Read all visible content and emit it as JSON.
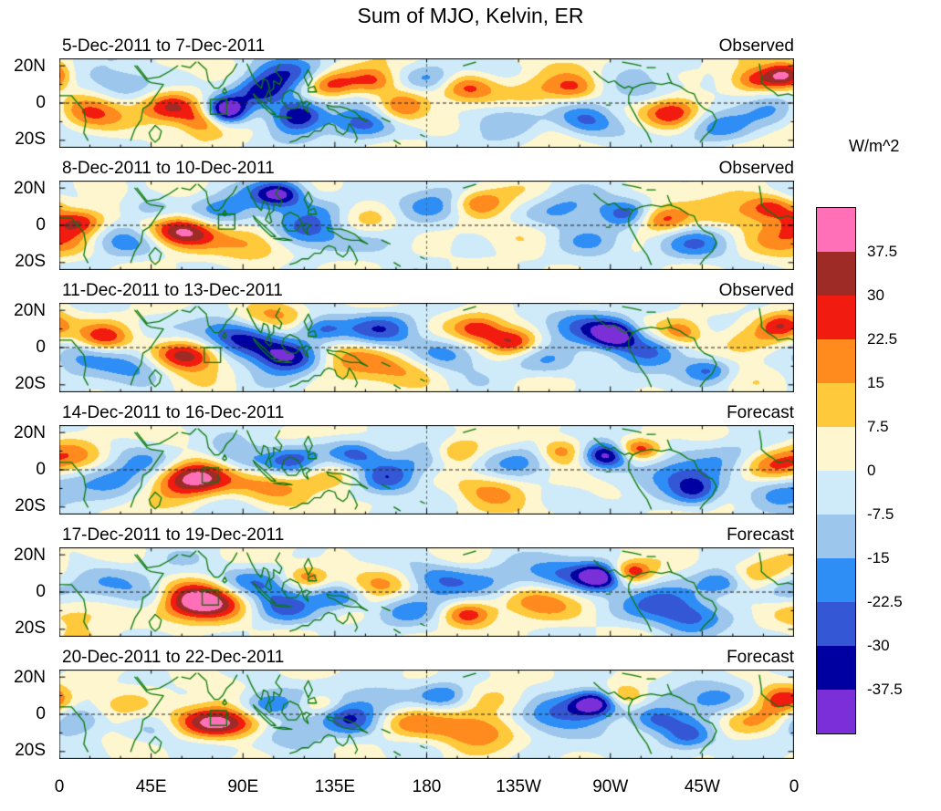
{
  "title": "Sum of MJO, Kelvin, ER",
  "y_axis": {
    "labels": [
      "20N",
      "0",
      "20S"
    ]
  },
  "x_axis": {
    "labels": [
      "0",
      "45E",
      "90E",
      "135E",
      "180",
      "135W",
      "90W",
      "45W",
      "0"
    ]
  },
  "colorbar": {
    "unit_label": "W/m^2",
    "tick_labels": [
      "37.5",
      "30",
      "22.5",
      "15",
      "7.5",
      "0",
      "-7.5",
      "-15",
      "-22.5",
      "-30",
      "-37.5"
    ],
    "colors_top_to_bottom": [
      "#FF70B8",
      "#9E2B25",
      "#F21B0F",
      "#FF8A1E",
      "#FFC93C",
      "#FEF6CE",
      "#CFEAF8",
      "#9CC6EC",
      "#2F8EF5",
      "#3457D5",
      "#0000A0",
      "#7B2FD9"
    ],
    "coastline_color": "#0B7A0B"
  },
  "chart_data": {
    "type": "heatmap",
    "title": "Sum of MJO, Kelvin, ER",
    "unit": "W/m^2",
    "lon_range": [
      0,
      360
    ],
    "lat_range": [
      -24,
      24
    ],
    "lat_ticks": [
      20,
      0,
      -20
    ],
    "lon_tick_step_deg": 45,
    "contour_levels": [
      -37.5,
      -30,
      -22.5,
      -15,
      -7.5,
      0,
      7.5,
      15,
      22.5,
      30,
      37.5
    ],
    "panels": [
      {
        "date_range": "5-Dec-2011 to 7-Dec-2011",
        "status": "Observed",
        "box_lon_lat": [
          74,
          82,
          -6,
          2
        ],
        "features": [
          {
            "lon": 15,
            "lat": -6,
            "amp": 24
          },
          {
            "lon": 32,
            "lat": 9,
            "amp": -16
          },
          {
            "lon": 55,
            "lat": -2,
            "amp": 32,
            "slon": 11,
            "slat": 6
          },
          {
            "lon": 70,
            "lat": -10,
            "amp": 20,
            "slon": 8,
            "slat": 5
          },
          {
            "lon": 82,
            "lat": -4,
            "amp": -46,
            "slon": 7,
            "slat": 5
          },
          {
            "lon": 100,
            "lat": 6,
            "amp": -34,
            "slon": 10,
            "slat": 6
          },
          {
            "lon": 117,
            "lat": -6,
            "amp": -40,
            "slon": 9,
            "slat": 6
          },
          {
            "lon": 112,
            "lat": 16,
            "amp": -20
          },
          {
            "lon": 133,
            "lat": 10,
            "amp": 26,
            "slon": 9,
            "slat": 5
          },
          {
            "lon": 148,
            "lat": -12,
            "amp": -28,
            "slon": 11,
            "slat": 6
          },
          {
            "lon": 154,
            "lat": 12,
            "amp": 22,
            "slon": 8,
            "slat": 5
          },
          {
            "lon": 168,
            "lat": -2,
            "amp": 24,
            "slon": 9,
            "slat": 6
          },
          {
            "lon": 182,
            "lat": 13,
            "amp": -18,
            "slon": 9,
            "slat": 5
          },
          {
            "lon": 200,
            "lat": 8,
            "amp": 22,
            "slon": 10,
            "slat": 5
          },
          {
            "lon": 218,
            "lat": -8,
            "amp": -14
          },
          {
            "lon": 238,
            "lat": 6,
            "amp": 16
          },
          {
            "lon": 258,
            "lat": -10,
            "amp": -24,
            "slon": 10,
            "slat": 6
          },
          {
            "lon": 253,
            "lat": 8,
            "amp": 18,
            "slon": 8,
            "slat": 5
          },
          {
            "lon": 286,
            "lat": 5,
            "amp": -16
          },
          {
            "lon": 300,
            "lat": -5,
            "amp": 32,
            "slon": 10,
            "slat": 6
          },
          {
            "lon": 322,
            "lat": -13,
            "amp": -18
          },
          {
            "lon": 341,
            "lat": 12,
            "amp": 24,
            "slon": 9,
            "slat": 5
          },
          {
            "lon": 356,
            "lat": 15,
            "amp": 30,
            "slon": 7,
            "slat": 5
          },
          {
            "lon": 352,
            "lat": -6,
            "amp": -14
          }
        ]
      },
      {
        "date_range": "8-Dec-2011 to 10-Dec-2011",
        "status": "Observed",
        "box_lon_lat": [
          78,
          86,
          -2,
          6
        ],
        "features": [
          {
            "lon": 10,
            "lat": 2,
            "amp": 30,
            "slon": 9,
            "slat": 5
          },
          {
            "lon": 28,
            "lat": -8,
            "amp": -16
          },
          {
            "lon": 45,
            "lat": 9,
            "amp": -18,
            "slon": 9,
            "slat": 5
          },
          {
            "lon": 60,
            "lat": -3,
            "amp": 44,
            "slon": 12,
            "slat": 6
          },
          {
            "lon": 80,
            "lat": 6,
            "amp": -20
          },
          {
            "lon": 95,
            "lat": -10,
            "amp": 16
          },
          {
            "lon": 108,
            "lat": 17,
            "amp": -40,
            "slon": 9,
            "slat": 5
          },
          {
            "lon": 118,
            "lat": -4,
            "amp": -22
          },
          {
            "lon": 132,
            "lat": 8,
            "amp": -18
          },
          {
            "lon": 150,
            "lat": 3,
            "amp": 14
          },
          {
            "lon": 165,
            "lat": -8,
            "amp": -12
          },
          {
            "lon": 185,
            "lat": 10,
            "amp": -16
          },
          {
            "lon": 205,
            "lat": 12,
            "amp": 24,
            "slon": 9,
            "slat": 5
          },
          {
            "lon": 225,
            "lat": -5,
            "amp": 12
          },
          {
            "lon": 245,
            "lat": 8,
            "amp": -18
          },
          {
            "lon": 262,
            "lat": -8,
            "amp": -20
          },
          {
            "lon": 278,
            "lat": 6,
            "amp": -22,
            "slon": 9,
            "slat": 5
          },
          {
            "lon": 295,
            "lat": 3,
            "amp": 26,
            "slon": 9,
            "slat": 5
          },
          {
            "lon": 312,
            "lat": -10,
            "amp": -16
          },
          {
            "lon": 330,
            "lat": 5,
            "amp": 14
          },
          {
            "lon": 349,
            "lat": 10,
            "amp": 26,
            "slon": 9,
            "slat": 5
          },
          {
            "lon": 357,
            "lat": -8,
            "amp": 18
          }
        ]
      },
      {
        "date_range": "11-Dec-2011 to 13-Dec-2011",
        "status": "Observed",
        "box_lon_lat": [
          71,
          79,
          -8,
          0
        ],
        "features": [
          {
            "lon": 8,
            "lat": -3,
            "amp": -14
          },
          {
            "lon": 22,
            "lat": 5,
            "amp": 24,
            "slon": 9,
            "slat": 5
          },
          {
            "lon": 40,
            "lat": -10,
            "amp": -18
          },
          {
            "lon": 62,
            "lat": -4,
            "amp": 38,
            "slon": 12,
            "slat": 6
          },
          {
            "lon": 82,
            "lat": 8,
            "amp": -20
          },
          {
            "lon": 96,
            "lat": 2,
            "amp": -26
          },
          {
            "lon": 112,
            "lat": -5,
            "amp": -34,
            "slon": 11,
            "slat": 6
          },
          {
            "lon": 104,
            "lat": 16,
            "amp": 18
          },
          {
            "lon": 128,
            "lat": 10,
            "amp": -28,
            "slon": 9,
            "slat": 5
          },
          {
            "lon": 142,
            "lat": -5,
            "amp": 18
          },
          {
            "lon": 158,
            "lat": 10,
            "amp": -22
          },
          {
            "lon": 172,
            "lat": -12,
            "amp": 14
          },
          {
            "lon": 188,
            "lat": -3,
            "amp": -18
          },
          {
            "lon": 205,
            "lat": 10,
            "amp": 26,
            "slon": 9,
            "slat": 5
          },
          {
            "lon": 222,
            "lat": 3,
            "amp": 30,
            "slon": 9,
            "slat": 5
          },
          {
            "lon": 240,
            "lat": -8,
            "amp": -16
          },
          {
            "lon": 258,
            "lat": 12,
            "amp": -20
          },
          {
            "lon": 272,
            "lat": 7,
            "amp": -40,
            "slon": 8,
            "slat": 5
          },
          {
            "lon": 288,
            "lat": 0,
            "amp": -24
          },
          {
            "lon": 305,
            "lat": 8,
            "amp": 22,
            "slon": 8,
            "slat": 5
          },
          {
            "lon": 318,
            "lat": -12,
            "amp": -26,
            "slon": 9,
            "slat": 5
          },
          {
            "lon": 338,
            "lat": 3,
            "amp": 16
          },
          {
            "lon": 354,
            "lat": 12,
            "amp": 28,
            "slon": 8,
            "slat": 5
          }
        ]
      },
      {
        "date_range": "14-Dec-2011 to 16-Dec-2011",
        "status": "Forecast",
        "box_lon_lat": [
          70,
          78,
          -7,
          1
        ],
        "features": [
          {
            "lon": 10,
            "lat": 8,
            "amp": 16
          },
          {
            "lon": 25,
            "lat": -5,
            "amp": -18
          },
          {
            "lon": 45,
            "lat": 5,
            "amp": -16
          },
          {
            "lon": 65,
            "lat": -4,
            "amp": 46,
            "slon": 14,
            "slat": 7
          },
          {
            "lon": 88,
            "lat": 4,
            "amp": -22
          },
          {
            "lon": 102,
            "lat": -8,
            "amp": 18
          },
          {
            "lon": 115,
            "lat": 5,
            "amp": -26,
            "slon": 10,
            "slat": 6
          },
          {
            "lon": 130,
            "lat": -3,
            "amp": 16
          },
          {
            "lon": 145,
            "lat": 8,
            "amp": -24,
            "slon": 9,
            "slat": 5
          },
          {
            "lon": 160,
            "lat": -5,
            "amp": -28,
            "slon": 10,
            "slat": 6
          },
          {
            "lon": 178,
            "lat": 5,
            "amp": -18
          },
          {
            "lon": 195,
            "lat": 10,
            "amp": 22,
            "slon": 8,
            "slat": 5
          },
          {
            "lon": 210,
            "lat": -10,
            "amp": 16
          },
          {
            "lon": 228,
            "lat": 5,
            "amp": -14
          },
          {
            "lon": 245,
            "lat": 10,
            "amp": 24,
            "slon": 8,
            "slat": 5
          },
          {
            "lon": 268,
            "lat": 8,
            "amp": -46,
            "slon": 8,
            "slat": 5
          },
          {
            "lon": 284,
            "lat": 11,
            "amp": 30,
            "slon": 8,
            "slat": 4
          },
          {
            "lon": 298,
            "lat": -3,
            "amp": -18
          },
          {
            "lon": 312,
            "lat": -12,
            "amp": -30,
            "slon": 9,
            "slat": 6
          },
          {
            "lon": 330,
            "lat": 8,
            "amp": -16
          },
          {
            "lon": 348,
            "lat": 3,
            "amp": 18
          },
          {
            "lon": 356,
            "lat": -10,
            "amp": -16
          }
        ]
      },
      {
        "date_range": "17-Dec-2011 to 19-Dec-2011",
        "status": "Forecast",
        "box_lon_lat": [
          70,
          78,
          -7,
          1
        ],
        "features": [
          {
            "lon": 8,
            "lat": -10,
            "amp": 18
          },
          {
            "lon": 20,
            "lat": 8,
            "amp": -16
          },
          {
            "lon": 45,
            "lat": -3,
            "amp": -20,
            "slon": 10,
            "slat": 6
          },
          {
            "lon": 70,
            "lat": -5,
            "amp": 48,
            "slon": 16,
            "slat": 7
          },
          {
            "lon": 95,
            "lat": 5,
            "amp": -24
          },
          {
            "lon": 110,
            "lat": -8,
            "amp": -20
          },
          {
            "lon": 122,
            "lat": 8,
            "amp": 18,
            "slon": 7,
            "slat": 4
          },
          {
            "lon": 138,
            "lat": -3,
            "amp": -26,
            "slon": 9,
            "slat": 5
          },
          {
            "lon": 155,
            "lat": 5,
            "amp": 20
          },
          {
            "lon": 170,
            "lat": -10,
            "amp": -18
          },
          {
            "lon": 185,
            "lat": 8,
            "amp": -22
          },
          {
            "lon": 200,
            "lat": -12,
            "amp": 28,
            "slon": 9,
            "slat": 5
          },
          {
            "lon": 215,
            "lat": 5,
            "amp": -16
          },
          {
            "lon": 232,
            "lat": -5,
            "amp": 18
          },
          {
            "lon": 248,
            "lat": 10,
            "amp": -18
          },
          {
            "lon": 265,
            "lat": 8,
            "amp": -46,
            "slon": 8,
            "slat": 5
          },
          {
            "lon": 280,
            "lat": 11,
            "amp": 28,
            "slon": 7,
            "slat": 4
          },
          {
            "lon": 295,
            "lat": -5,
            "amp": -20
          },
          {
            "lon": 310,
            "lat": -14,
            "amp": -24
          },
          {
            "lon": 325,
            "lat": 5,
            "amp": -28,
            "slon": 9,
            "slat": 5
          },
          {
            "lon": 342,
            "lat": 10,
            "amp": 20
          },
          {
            "lon": 355,
            "lat": 0,
            "amp": -14
          }
        ]
      },
      {
        "date_range": "20-Dec-2011 to 22-Dec-2011",
        "status": "Forecast",
        "box_lon_lat": [
          74,
          82,
          -6,
          2
        ],
        "features": [
          {
            "lon": 10,
            "lat": -3,
            "amp": -20,
            "slon": 10,
            "slat": 6
          },
          {
            "lon": 30,
            "lat": 5,
            "amp": 16
          },
          {
            "lon": 50,
            "lat": -8,
            "amp": -18
          },
          {
            "lon": 78,
            "lat": -5,
            "amp": 46,
            "slon": 18,
            "slat": 6
          },
          {
            "lon": 100,
            "lat": 5,
            "amp": -26,
            "slon": 10,
            "slat": 6
          },
          {
            "lon": 115,
            "lat": -10,
            "amp": -22
          },
          {
            "lon": 128,
            "lat": 6,
            "amp": 18,
            "slon": 7,
            "slat": 4
          },
          {
            "lon": 142,
            "lat": -3,
            "amp": -28,
            "slon": 10,
            "slat": 6
          },
          {
            "lon": 158,
            "lat": 8,
            "amp": -18
          },
          {
            "lon": 172,
            "lat": -5,
            "amp": 20
          },
          {
            "lon": 188,
            "lat": 10,
            "amp": -24,
            "slon": 9,
            "slat": 5
          },
          {
            "lon": 202,
            "lat": -8,
            "amp": 22
          },
          {
            "lon": 218,
            "lat": 8,
            "amp": 16
          },
          {
            "lon": 235,
            "lat": -3,
            "amp": -16
          },
          {
            "lon": 250,
            "lat": 5,
            "amp": -20
          },
          {
            "lon": 262,
            "lat": 6,
            "amp": -42,
            "slon": 8,
            "slat": 5
          },
          {
            "lon": 278,
            "lat": 10,
            "amp": 20,
            "slon": 7,
            "slat": 4
          },
          {
            "lon": 292,
            "lat": -3,
            "amp": -24,
            "slon": 9,
            "slat": 5
          },
          {
            "lon": 308,
            "lat": -12,
            "amp": -30,
            "slon": 10,
            "slat": 6
          },
          {
            "lon": 322,
            "lat": 8,
            "amp": -18
          },
          {
            "lon": 340,
            "lat": -3,
            "amp": 16
          },
          {
            "lon": 354,
            "lat": 8,
            "amp": 22,
            "slon": 8,
            "slat": 5
          }
        ]
      }
    ]
  }
}
